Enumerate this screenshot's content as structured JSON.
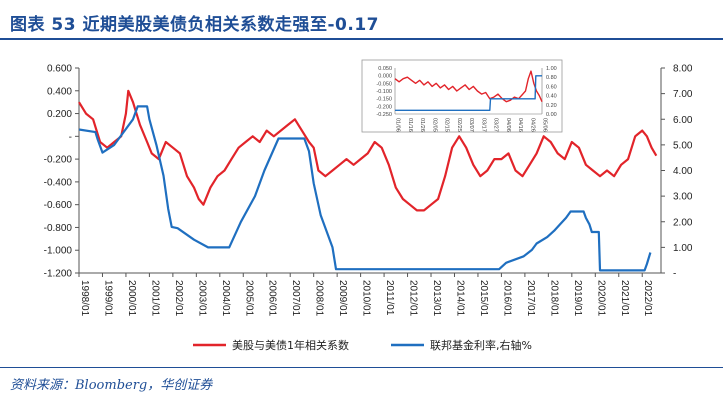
{
  "figure": {
    "title": "图表 53   近期美股美债负相关系数走强至-0.17",
    "source": "资料来源：Bloomberg，华创证券"
  },
  "colors": {
    "correlation": "#e2242a",
    "fed_funds": "#1f6fc0",
    "accent": "#1f4e96"
  },
  "chart_data": [
    {
      "type": "line",
      "title": "",
      "x_ticks": [
        "1998/01",
        "1999/01",
        "2000/01",
        "2001/01",
        "2002/01",
        "2003/01",
        "2004/01",
        "2005/01",
        "2006/01",
        "2007/01",
        "2008/01",
        "2009/01",
        "2010/01",
        "2011/01",
        "2012/01",
        "2013/01",
        "2014/01",
        "2015/01",
        "2016/01",
        "2017/01",
        "2018/01",
        "2019/01",
        "2020/01",
        "2021/01",
        "2022/01"
      ],
      "y_left": {
        "ticks": [
          "0.600",
          "0.400",
          "0.200",
          "-",
          "-0.200",
          "-0.400",
          "-0.600",
          "-0.800",
          "-1.000",
          "-1.200"
        ],
        "ylim": [
          -1.2,
          0.6
        ]
      },
      "y_right": {
        "ticks": [
          "8.00",
          "7.00",
          "6.00",
          "5.00",
          "4.00",
          "3.00",
          "2.00",
          "1.00",
          "-"
        ],
        "ylim": [
          0,
          8
        ]
      },
      "grid": false,
      "legend_position": "bottom",
      "series": [
        {
          "name": "美股与美债1年相关系数",
          "axis": "left",
          "points": [
            [
              1998.0,
              0.3
            ],
            [
              1998.3,
              0.2
            ],
            [
              1998.6,
              0.15
            ],
            [
              1998.9,
              -0.05
            ],
            [
              1999.2,
              -0.1
            ],
            [
              1999.5,
              -0.05
            ],
            [
              1999.8,
              0.0
            ],
            [
              2000.0,
              0.2
            ],
            [
              2000.1,
              0.4
            ],
            [
              2000.3,
              0.3
            ],
            [
              2000.6,
              0.1
            ],
            [
              2000.9,
              -0.05
            ],
            [
              2001.1,
              -0.15
            ],
            [
              2001.4,
              -0.2
            ],
            [
              2001.7,
              -0.05
            ],
            [
              2002.0,
              -0.1
            ],
            [
              2002.3,
              -0.15
            ],
            [
              2002.6,
              -0.35
            ],
            [
              2002.9,
              -0.45
            ],
            [
              2003.1,
              -0.55
            ],
            [
              2003.3,
              -0.6
            ],
            [
              2003.6,
              -0.45
            ],
            [
              2003.9,
              -0.35
            ],
            [
              2004.2,
              -0.3
            ],
            [
              2004.5,
              -0.2
            ],
            [
              2004.8,
              -0.1
            ],
            [
              2005.1,
              -0.05
            ],
            [
              2005.4,
              0.0
            ],
            [
              2005.7,
              -0.05
            ],
            [
              2006.0,
              0.05
            ],
            [
              2006.3,
              0.0
            ],
            [
              2006.6,
              0.05
            ],
            [
              2006.9,
              0.1
            ],
            [
              2007.2,
              0.15
            ],
            [
              2007.5,
              0.05
            ],
            [
              2007.8,
              -0.05
            ],
            [
              2008.0,
              -0.1
            ],
            [
              2008.2,
              -0.3
            ],
            [
              2008.5,
              -0.35
            ],
            [
              2008.8,
              -0.3
            ],
            [
              2009.1,
              -0.25
            ],
            [
              2009.4,
              -0.2
            ],
            [
              2009.7,
              -0.25
            ],
            [
              2010.0,
              -0.2
            ],
            [
              2010.3,
              -0.15
            ],
            [
              2010.6,
              -0.05
            ],
            [
              2010.9,
              -0.1
            ],
            [
              2011.2,
              -0.25
            ],
            [
              2011.5,
              -0.45
            ],
            [
              2011.8,
              -0.55
            ],
            [
              2012.1,
              -0.6
            ],
            [
              2012.4,
              -0.65
            ],
            [
              2012.7,
              -0.65
            ],
            [
              2013.0,
              -0.6
            ],
            [
              2013.3,
              -0.55
            ],
            [
              2013.6,
              -0.35
            ],
            [
              2013.9,
              -0.1
            ],
            [
              2014.2,
              0.0
            ],
            [
              2014.5,
              -0.1
            ],
            [
              2014.8,
              -0.25
            ],
            [
              2015.1,
              -0.35
            ],
            [
              2015.4,
              -0.3
            ],
            [
              2015.7,
              -0.2
            ],
            [
              2016.0,
              -0.2
            ],
            [
              2016.3,
              -0.15
            ],
            [
              2016.6,
              -0.3
            ],
            [
              2016.9,
              -0.35
            ],
            [
              2017.2,
              -0.25
            ],
            [
              2017.5,
              -0.15
            ],
            [
              2017.8,
              0.0
            ],
            [
              2018.1,
              -0.05
            ],
            [
              2018.4,
              -0.15
            ],
            [
              2018.7,
              -0.2
            ],
            [
              2019.0,
              -0.05
            ],
            [
              2019.3,
              -0.1
            ],
            [
              2019.6,
              -0.25
            ],
            [
              2019.9,
              -0.3
            ],
            [
              2020.2,
              -0.35
            ],
            [
              2020.5,
              -0.3
            ],
            [
              2020.8,
              -0.35
            ],
            [
              2021.1,
              -0.25
            ],
            [
              2021.4,
              -0.2
            ],
            [
              2021.7,
              0.0
            ],
            [
              2022.0,
              0.05
            ],
            [
              2022.2,
              0.0
            ],
            [
              2022.4,
              -0.1
            ],
            [
              2022.6,
              -0.17
            ]
          ]
        },
        {
          "name": "联邦基金利率,右轴%",
          "axis": "right",
          "points": [
            [
              1998.0,
              5.6
            ],
            [
              1998.7,
              5.5
            ],
            [
              1998.8,
              5.2
            ],
            [
              1999.0,
              4.7
            ],
            [
              1999.5,
              5.0
            ],
            [
              1999.9,
              5.5
            ],
            [
              2000.3,
              6.0
            ],
            [
              2000.5,
              6.5
            ],
            [
              2000.9,
              6.5
            ],
            [
              2001.0,
              6.0
            ],
            [
              2001.3,
              5.0
            ],
            [
              2001.6,
              3.8
            ],
            [
              2001.8,
              2.5
            ],
            [
              2001.95,
              1.8
            ],
            [
              2002.2,
              1.75
            ],
            [
              2002.9,
              1.3
            ],
            [
              2003.5,
              1.0
            ],
            [
              2004.4,
              1.0
            ],
            [
              2004.9,
              2.0
            ],
            [
              2005.5,
              3.0
            ],
            [
              2005.9,
              4.0
            ],
            [
              2006.5,
              5.25
            ],
            [
              2007.6,
              5.25
            ],
            [
              2007.8,
              4.75
            ],
            [
              2008.0,
              3.5
            ],
            [
              2008.3,
              2.25
            ],
            [
              2008.8,
              1.0
            ],
            [
              2008.95,
              0.15
            ],
            [
              2009.5,
              0.15
            ],
            [
              2015.9,
              0.15
            ],
            [
              2016.2,
              0.4
            ],
            [
              2016.95,
              0.65
            ],
            [
              2017.3,
              0.9
            ],
            [
              2017.5,
              1.15
            ],
            [
              2017.95,
              1.4
            ],
            [
              2018.25,
              1.65
            ],
            [
              2018.5,
              1.9
            ],
            [
              2018.75,
              2.15
            ],
            [
              2018.95,
              2.4
            ],
            [
              2019.5,
              2.4
            ],
            [
              2019.6,
              2.15
            ],
            [
              2019.75,
              1.9
            ],
            [
              2019.85,
              1.6
            ],
            [
              2020.15,
              1.6
            ],
            [
              2020.2,
              0.1
            ],
            [
              2022.1,
              0.1
            ],
            [
              2022.2,
              0.35
            ],
            [
              2022.35,
              0.8
            ]
          ]
        }
      ]
    },
    {
      "type": "line",
      "title": "",
      "x_ticks": [
        "01/06",
        "01/16",
        "01/26",
        "02/05",
        "02/15",
        "02/25",
        "03/07",
        "03/17",
        "03/27",
        "04/06",
        "04/16",
        "04/26",
        "05/06"
      ],
      "y_left": {
        "ticks": [
          "0.050",
          "0.000",
          "-0.050",
          "-0.100",
          "-0.150",
          "-0.200",
          "-0.250"
        ],
        "ylim": [
          -0.25,
          0.05
        ]
      },
      "y_right": {
        "ticks": [
          "1.00",
          "0.80",
          "0.60",
          "0.40",
          "0.20",
          "0.00"
        ],
        "ylim": [
          0,
          1.0
        ]
      },
      "grid": false,
      "series": [
        {
          "name": "美股与美债1年相关系数",
          "axis": "left",
          "points": [
            [
              0,
              -0.02
            ],
            [
              3,
              -0.04
            ],
            [
              6,
              -0.02
            ],
            [
              9,
              -0.01
            ],
            [
              12,
              -0.03
            ],
            [
              15,
              -0.05
            ],
            [
              18,
              -0.03
            ],
            [
              21,
              -0.06
            ],
            [
              24,
              -0.04
            ],
            [
              27,
              -0.07
            ],
            [
              30,
              -0.05
            ],
            [
              33,
              -0.08
            ],
            [
              36,
              -0.06
            ],
            [
              39,
              -0.09
            ],
            [
              42,
              -0.07
            ],
            [
              45,
              -0.1
            ],
            [
              48,
              -0.08
            ],
            [
              51,
              -0.06
            ],
            [
              54,
              -0.09
            ],
            [
              57,
              -0.07
            ],
            [
              60,
              -0.1
            ],
            [
              63,
              -0.12
            ],
            [
              66,
              -0.11
            ],
            [
              69,
              -0.15
            ],
            [
              72,
              -0.14
            ],
            [
              75,
              -0.12
            ],
            [
              78,
              -0.15
            ],
            [
              81,
              -0.17
            ],
            [
              84,
              -0.16
            ],
            [
              87,
              -0.14
            ],
            [
              90,
              -0.15
            ],
            [
              93,
              -0.12
            ],
            [
              95,
              -0.1
            ],
            [
              97,
              -0.02
            ],
            [
              99,
              0.03
            ],
            [
              101,
              -0.05
            ],
            [
              103,
              -0.1
            ],
            [
              105,
              -0.13
            ],
            [
              107,
              -0.17
            ]
          ]
        },
        {
          "name": "联邦基金利率,右轴%",
          "axis": "right",
          "points": [
            [
              0,
              0.08
            ],
            [
              69,
              0.08
            ],
            [
              69.5,
              0.33
            ],
            [
              102,
              0.33
            ],
            [
              102.5,
              0.83
            ],
            [
              107,
              0.83
            ]
          ]
        }
      ]
    }
  ],
  "legend": {
    "correlation": "美股与美债1年相关系数",
    "fed_funds": "联邦基金利率,右轴%"
  }
}
